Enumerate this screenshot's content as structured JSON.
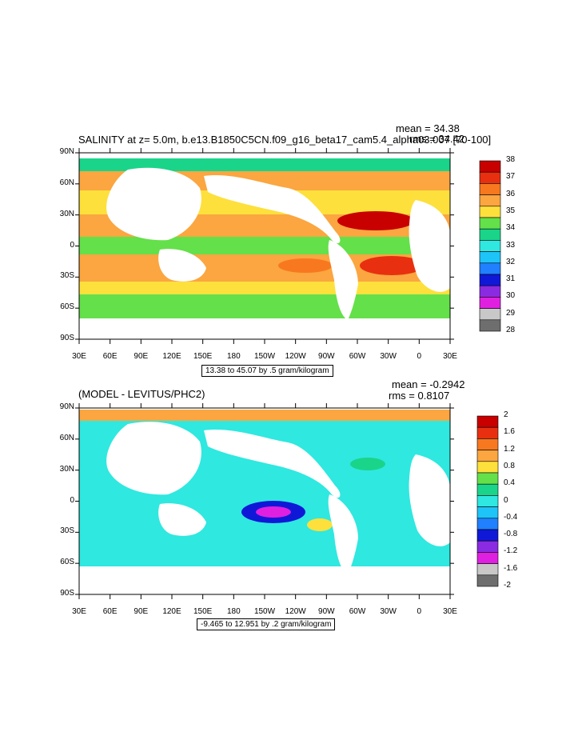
{
  "panel1": {
    "title": "SALINITY at z=   5.0m, b.e13.B1850C5CN.f09_g16_beta17_cam5.4_alpha03.007 [70-100]",
    "mean": "mean = 34.38",
    "rms": "rms = 34.42",
    "range_label": "13.38 to 45.07 by .5 gram/kilogram",
    "colorbar": {
      "labels": [
        "38",
        "37",
        "36",
        "35",
        "34",
        "33",
        "32",
        "31",
        "30",
        "29",
        "28"
      ],
      "colors": [
        "#c80000",
        "#e83010",
        "#f87820",
        "#fba640",
        "#fde03c",
        "#64e04a",
        "#1ad48a",
        "#2fe8e0",
        "#1ec4f8",
        "#2080ff",
        "#1018d8",
        "#8a2be2",
        "#e020e0",
        "#c8c8c8",
        "#6e6e6e"
      ]
    }
  },
  "panel2": {
    "title": "(MODEL - LEVITUS/PHC2)",
    "mean": "mean = -0.2942",
    "rms": "rms = 0.8107",
    "range_label": "-9.465 to 12.951 by .2 gram/kilogram",
    "colorbar": {
      "labels": [
        "2",
        "1.6",
        "1.2",
        "0.8",
        "0.4",
        "0",
        "-0.4",
        "-0.8",
        "-1.2",
        "-1.6",
        "-2"
      ],
      "colors": [
        "#c80000",
        "#e83010",
        "#f87820",
        "#fba640",
        "#fde03c",
        "#64e04a",
        "#1ad48a",
        "#2fe8e0",
        "#1ec4f8",
        "#2080ff",
        "#1018d8",
        "#8a2be2",
        "#e020e0",
        "#c8c8c8",
        "#6e6e6e"
      ]
    }
  },
  "axes": {
    "lat_ticks": [
      "90N",
      "60N",
      "30N",
      "0",
      "30S",
      "60S",
      "90S"
    ],
    "lon_ticks": [
      "30E",
      "60E",
      "90E",
      "120E",
      "150E",
      "180",
      "150W",
      "120W",
      "90W",
      "60W",
      "30W",
      "0",
      "30E"
    ]
  },
  "chart_data": [
    {
      "type": "heatmap",
      "title": "SALINITY at z=   5.0m, b.e13.B1850C5CN.f09_g16_beta17_cam5.4_alpha03.007 [70-100]",
      "mean": 34.38,
      "rms": 34.42,
      "contour_min": 13.38,
      "contour_max": 45.07,
      "contour_interval": 0.5,
      "units": "gram/kilogram",
      "colorbar_labels": [
        38,
        37,
        36,
        35,
        34,
        33,
        32,
        31,
        30,
        29,
        28
      ],
      "x_ticks": [
        "30E",
        "60E",
        "90E",
        "120E",
        "150E",
        "180",
        "150W",
        "120W",
        "90W",
        "60W",
        "30W",
        "0",
        "30E"
      ],
      "y_ticks": [
        "90N",
        "60N",
        "30N",
        "0",
        "30S",
        "60S",
        "90S"
      ]
    },
    {
      "type": "heatmap",
      "title": "(MODEL - LEVITUS/PHC2)",
      "mean": -0.2942,
      "rms": 0.8107,
      "contour_min": -9.465,
      "contour_max": 12.951,
      "contour_interval": 0.2,
      "units": "gram/kilogram",
      "colorbar_labels": [
        2,
        1.6,
        1.2,
        0.8,
        0.4,
        0,
        -0.4,
        -0.8,
        -1.2,
        -1.6,
        -2
      ],
      "x_ticks": [
        "30E",
        "60E",
        "90E",
        "120E",
        "150E",
        "180",
        "150W",
        "120W",
        "90W",
        "60W",
        "30W",
        "0",
        "30E"
      ],
      "y_ticks": [
        "90N",
        "60N",
        "30N",
        "0",
        "30S",
        "60S",
        "90S"
      ]
    }
  ]
}
